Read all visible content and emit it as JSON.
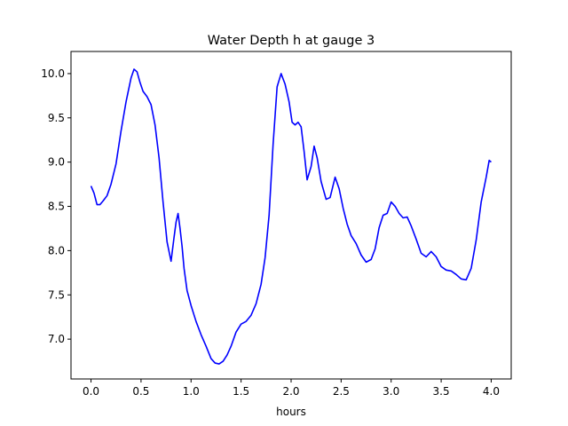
{
  "chart_data": {
    "type": "line",
    "title": "Water Depth h at gauge 3",
    "xlabel": "hours",
    "ylabel": "",
    "xlim": [
      -0.2,
      4.2
    ],
    "ylim": [
      6.55,
      10.25
    ],
    "xticks": [
      0.0,
      0.5,
      1.0,
      1.5,
      2.0,
      2.5,
      3.0,
      3.5,
      4.0
    ],
    "xtick_labels": [
      "0.0",
      "0.5",
      "1.0",
      "1.5",
      "2.0",
      "2.5",
      "3.0",
      "3.5",
      "4.0"
    ],
    "yticks": [
      7.0,
      7.5,
      8.0,
      8.5,
      9.0,
      9.5,
      10.0
    ],
    "ytick_labels": [
      "7.0",
      "7.5",
      "8.0",
      "8.5",
      "9.0",
      "9.5",
      "10.0"
    ],
    "grid": false,
    "series": [
      {
        "color": "#0000ff",
        "x": [
          0.0,
          0.03,
          0.06,
          0.09,
          0.12,
          0.16,
          0.2,
          0.25,
          0.3,
          0.35,
          0.4,
          0.43,
          0.46,
          0.49,
          0.52,
          0.56,
          0.6,
          0.64,
          0.68,
          0.72,
          0.76,
          0.8,
          0.83,
          0.85,
          0.87,
          0.89,
          0.91,
          0.93,
          0.96,
          1.0,
          1.05,
          1.1,
          1.15,
          1.2,
          1.24,
          1.28,
          1.32,
          1.36,
          1.4,
          1.45,
          1.5,
          1.55,
          1.6,
          1.65,
          1.7,
          1.74,
          1.78,
          1.82,
          1.86,
          1.9,
          1.94,
          1.98,
          2.01,
          2.04,
          2.07,
          2.1,
          2.13,
          2.16,
          2.2,
          2.23,
          2.26,
          2.3,
          2.35,
          2.39,
          2.44,
          2.48,
          2.52,
          2.56,
          2.6,
          2.65,
          2.7,
          2.75,
          2.8,
          2.84,
          2.88,
          2.92,
          2.96,
          3.0,
          3.04,
          3.08,
          3.12,
          3.16,
          3.2,
          3.25,
          3.3,
          3.35,
          3.4,
          3.45,
          3.5,
          3.55,
          3.6,
          3.65,
          3.7,
          3.75,
          3.8,
          3.85,
          3.9,
          3.95,
          3.98,
          4.0
        ],
        "y": [
          8.73,
          8.65,
          8.52,
          8.52,
          8.56,
          8.62,
          8.75,
          8.98,
          9.35,
          9.68,
          9.95,
          10.05,
          10.02,
          9.9,
          9.8,
          9.74,
          9.65,
          9.42,
          9.05,
          8.55,
          8.1,
          7.88,
          8.15,
          8.32,
          8.42,
          8.25,
          8.05,
          7.8,
          7.55,
          7.38,
          7.2,
          7.05,
          6.92,
          6.78,
          6.73,
          6.72,
          6.75,
          6.82,
          6.92,
          7.08,
          7.17,
          7.2,
          7.27,
          7.4,
          7.62,
          7.92,
          8.4,
          9.2,
          9.85,
          10.0,
          9.88,
          9.68,
          9.45,
          9.42,
          9.45,
          9.4,
          9.12,
          8.8,
          8.95,
          9.18,
          9.05,
          8.78,
          8.58,
          8.6,
          8.83,
          8.7,
          8.48,
          8.3,
          8.17,
          8.08,
          7.95,
          7.87,
          7.9,
          8.02,
          8.26,
          8.4,
          8.42,
          8.55,
          8.5,
          8.42,
          8.37,
          8.38,
          8.28,
          8.13,
          7.97,
          7.93,
          7.99,
          7.93,
          7.82,
          7.78,
          7.77,
          7.73,
          7.68,
          7.67,
          7.8,
          8.12,
          8.55,
          8.83,
          9.02,
          9.0
        ]
      }
    ]
  }
}
